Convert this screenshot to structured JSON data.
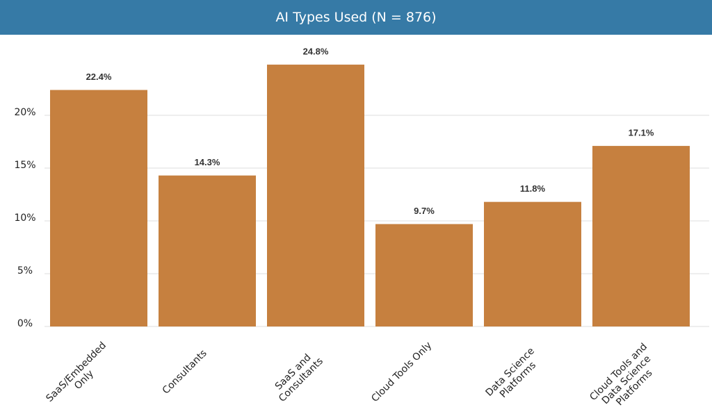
{
  "chart_data": {
    "type": "bar",
    "title": "AI Types Used (N = 876)",
    "categories": [
      "SaaS/Embedded Only",
      "Consultants",
      "SaaS and Consultants",
      "Cloud Tools Only",
      "Data Science Platforms",
      "Cloud Tools and Data Science Platforms"
    ],
    "values": [
      22.4,
      14.3,
      24.8,
      9.7,
      11.8,
      17.1
    ],
    "value_labels": [
      "22.4%",
      "14.3%",
      "24.8%",
      "9.7%",
      "11.8%",
      "17.1%"
    ],
    "color": "#c6803f",
    "ylim": [
      0,
      25
    ],
    "yticks": [
      {
        "value": 0,
        "label": "0%"
      },
      {
        "value": 5,
        "label": "5%"
      },
      {
        "value": 10,
        "label": "10%"
      },
      {
        "value": 15,
        "label": "15%"
      },
      {
        "value": 20,
        "label": "20%"
      }
    ],
    "grid": true
  }
}
